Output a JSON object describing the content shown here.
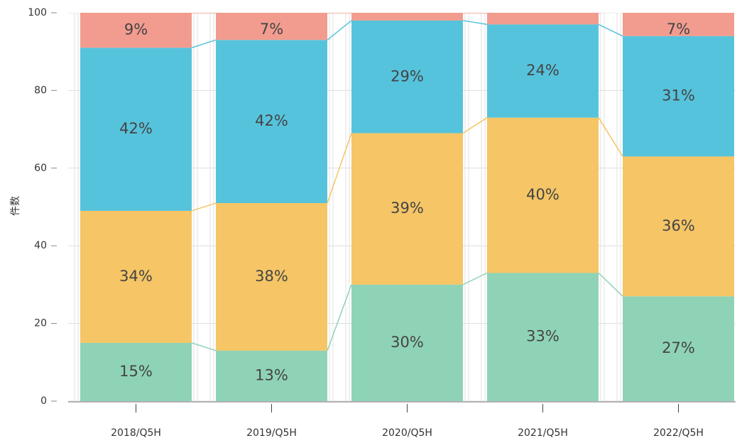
{
  "chart_data": {
    "type": "stacked_bar",
    "y_label": "件数",
    "categories": [
      "2018/Q5H",
      "2019/Q5H",
      "2020/Q5H",
      "2021/Q5H",
      "2022/Q5H"
    ],
    "series": [
      {
        "color": "#8fd3b6",
        "values": [
          15,
          13,
          30,
          33,
          27
        ],
        "value_labels": [
          "15%",
          "13%",
          "30%",
          "33%",
          "27%"
        ]
      },
      {
        "color": "#f5c566",
        "values": [
          34,
          38,
          39,
          40,
          36
        ],
        "value_labels": [
          "34%",
          "38%",
          "39%",
          "40%",
          "36%"
        ]
      },
      {
        "color": "#56c3dc",
        "values": [
          42,
          42,
          29,
          24,
          31
        ],
        "value_labels": [
          "42%",
          "42%",
          "29%",
          "24%",
          "31%"
        ]
      },
      {
        "color": "#f19c8f",
        "values": [
          9,
          7,
          2,
          3,
          7
        ],
        "value_labels": [
          "9%",
          "7%",
          null,
          null,
          "7%"
        ]
      }
    ],
    "ylim": [
      0,
      100
    ],
    "yticks": [
      0,
      20,
      40,
      60,
      80,
      100
    ],
    "grid": true
  }
}
